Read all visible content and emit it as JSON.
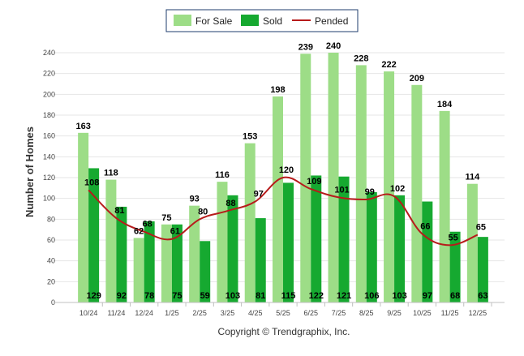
{
  "chart_data": {
    "type": "bar",
    "ylabel": "Number of Homes",
    "xlabel": "",
    "ylim": [
      0,
      240
    ],
    "ytick_step": 20,
    "grid": true,
    "legend_position": "top",
    "categories": [
      "10/24",
      "11/24",
      "12/24",
      "1/25",
      "2/25",
      "3/25",
      "4/25",
      "5/25",
      "6/25",
      "7/25",
      "8/25",
      "9/25",
      "10/25",
      "11/25",
      "12/25"
    ],
    "series": [
      {
        "name": "For Sale",
        "type": "bar",
        "color": "#9ddd87",
        "values": [
          163,
          118,
          62,
          75,
          93,
          116,
          153,
          198,
          239,
          240,
          228,
          222,
          209,
          184,
          114
        ]
      },
      {
        "name": "Sold",
        "type": "bar",
        "color": "#16a930",
        "values": [
          129,
          92,
          78,
          75,
          59,
          103,
          81,
          115,
          122,
          121,
          106,
          103,
          97,
          68,
          63
        ]
      },
      {
        "name": "Pended",
        "type": "line",
        "color": "#b71b1b",
        "values": [
          108,
          81,
          68,
          61,
          80,
          88,
          97,
          120,
          109,
          101,
          99,
          102,
          66,
          55,
          65
        ]
      }
    ]
  },
  "footer": {
    "copyright": "Copyright © Trendgraphix, Inc."
  }
}
